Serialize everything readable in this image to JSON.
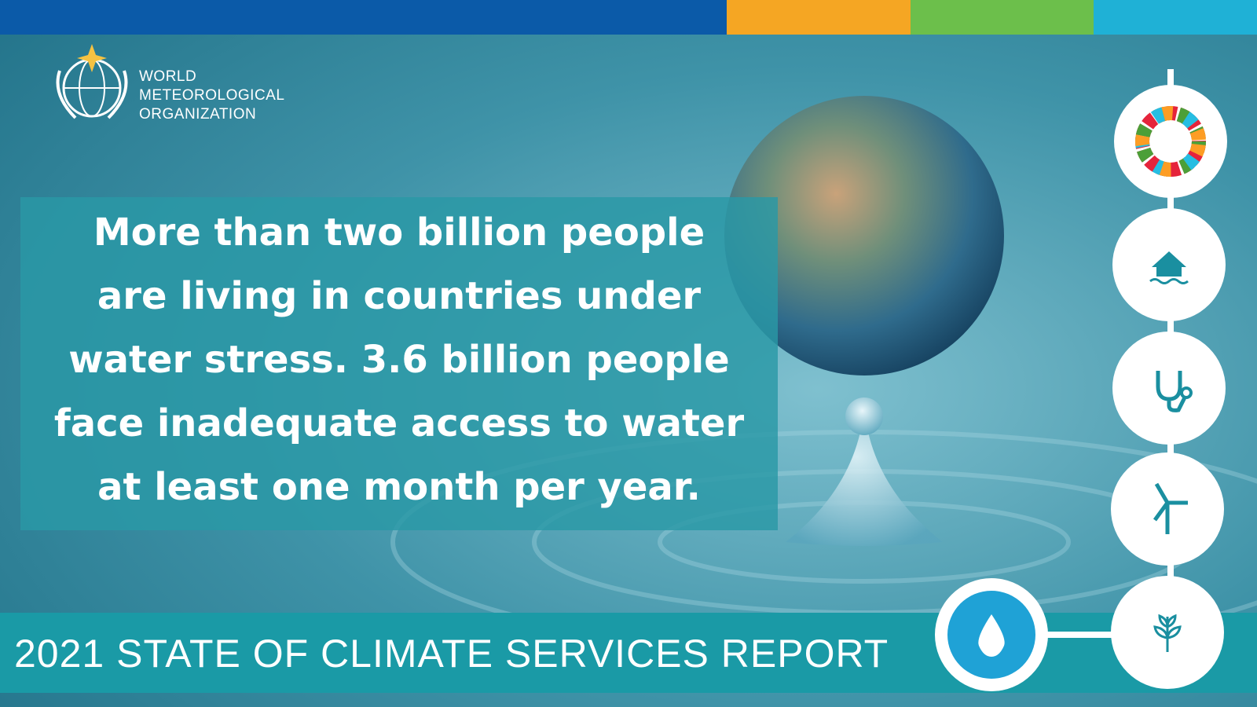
{
  "header": {
    "organization": [
      "WORLD",
      "METEOROLOGICAL",
      "ORGANIZATION"
    ]
  },
  "headline": {
    "lines": [
      "More than two billion people",
      "are living in countries under",
      "water stress. 3.6 billion people",
      "face inadequate access to water",
      "at least one month per year."
    ]
  },
  "footer": {
    "title": "2021 STATE OF CLIMATE SERVICES REPORT"
  }
}
